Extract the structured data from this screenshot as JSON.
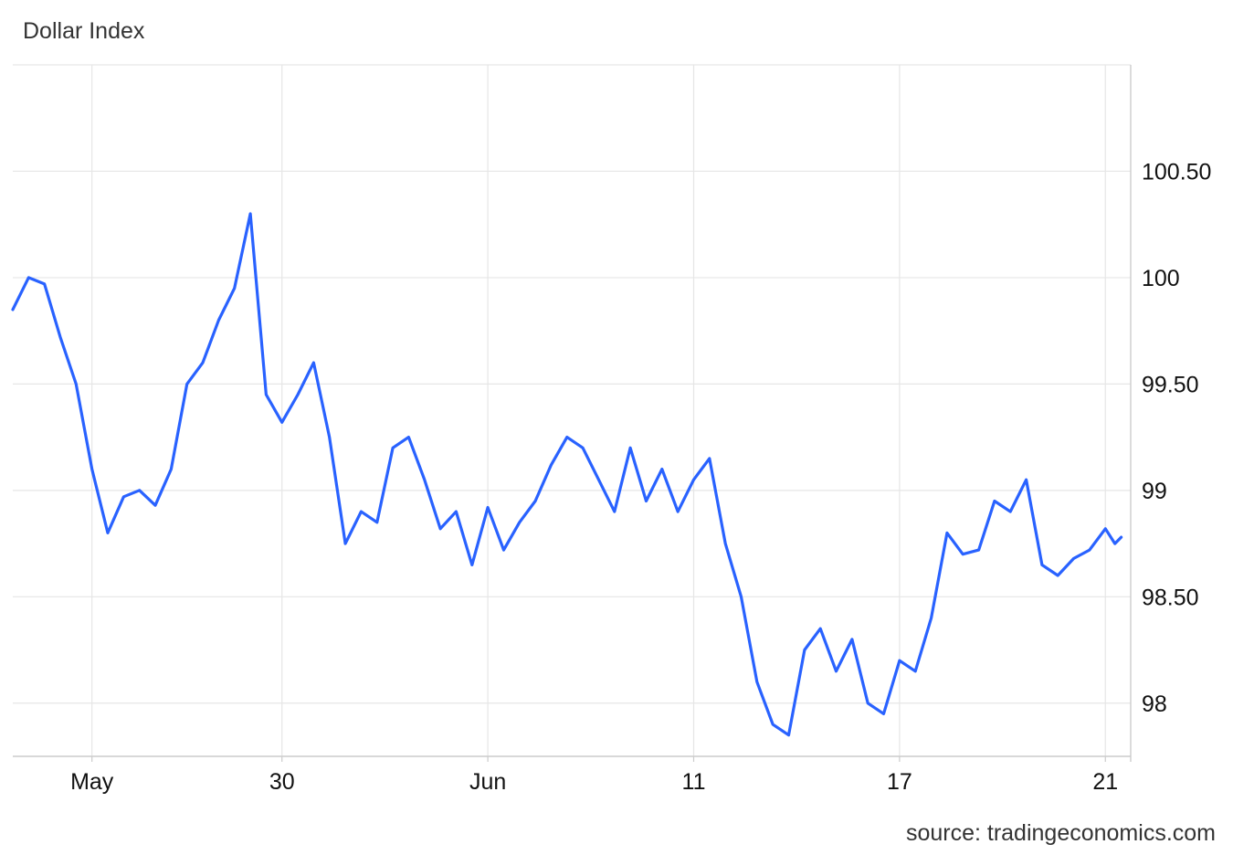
{
  "title": "Dollar Index",
  "source": "source: tradingeconomics.com",
  "chart_data": {
    "type": "line",
    "title": "Dollar Index",
    "ylim": [
      97.75,
      101.0
    ],
    "y_ticks": [
      98,
      98.5,
      99,
      99.5,
      100,
      100.5
    ],
    "y_tick_labels": [
      "98",
      "98.50",
      "99",
      "99.50",
      "100",
      "100.50"
    ],
    "x_ticks": [
      {
        "label": "May",
        "x": 24
      },
      {
        "label": "30",
        "x": 30
      },
      {
        "label": "Jun",
        "x": 36.5
      },
      {
        "label": "11",
        "x": 43
      },
      {
        "label": "17",
        "x": 49.5
      },
      {
        "label": "21",
        "x": 56
      }
    ],
    "x_range": [
      21.5,
      56.8
    ],
    "grid": true,
    "line_color": "#2962ff",
    "series": [
      {
        "x": [
          21.5,
          22.0,
          22.5,
          23.0,
          23.5,
          24.0,
          24.5,
          25.0,
          25.5,
          26.0,
          26.5,
          27.0,
          27.5,
          28.0,
          28.5,
          29.0,
          29.5,
          30.0,
          30.5,
          31.0,
          31.5,
          32.0,
          32.5,
          33.0,
          33.5,
          34.0,
          34.5,
          35.0,
          35.5,
          36.0,
          36.5,
          37.0,
          37.5,
          38.0,
          38.5,
          39.0,
          39.5,
          40.0,
          40.5,
          41.0,
          41.5,
          42.0,
          42.5,
          43.0,
          43.5,
          44.0,
          44.5,
          45.0,
          45.5,
          46.0,
          46.5,
          47.0,
          47.5,
          48.0,
          48.5,
          49.0,
          49.5,
          50.0,
          50.5,
          51.0,
          51.5,
          52.0,
          52.5,
          53.0,
          53.5,
          54.0,
          54.5,
          55.0,
          55.5,
          56.0,
          56.3,
          56.5
        ],
        "values": [
          99.85,
          100.0,
          99.97,
          99.72,
          99.5,
          99.1,
          98.8,
          98.97,
          99.0,
          98.93,
          99.1,
          99.5,
          99.6,
          99.8,
          99.95,
          100.3,
          99.45,
          99.32,
          99.45,
          99.6,
          99.25,
          98.75,
          98.9,
          98.85,
          99.2,
          99.25,
          99.05,
          98.82,
          98.9,
          98.65,
          98.92,
          98.72,
          98.85,
          98.95,
          99.12,
          99.25,
          99.2,
          99.05,
          98.9,
          99.2,
          98.95,
          99.1,
          98.9,
          99.05,
          99.15,
          98.75,
          98.5,
          98.1,
          97.9,
          97.85,
          98.25,
          98.35,
          98.15,
          98.3,
          98.0,
          97.95,
          98.2,
          98.15,
          98.4,
          98.8,
          98.7,
          98.72,
          98.95,
          98.9,
          99.05,
          98.65,
          98.6,
          98.68,
          98.72,
          98.82,
          98.75,
          98.78
        ]
      }
    ]
  }
}
